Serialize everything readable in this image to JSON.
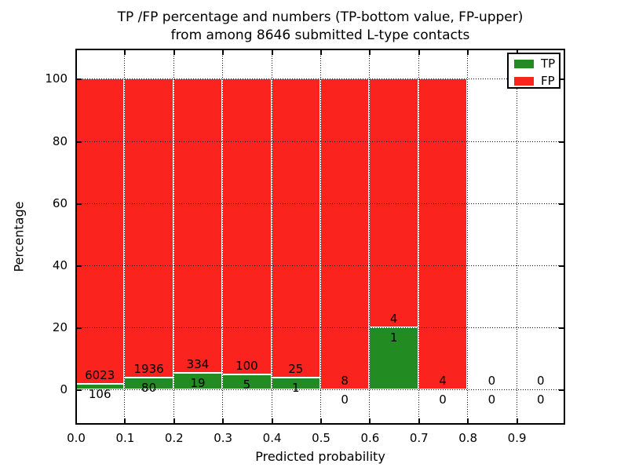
{
  "title": {
    "line1": "TP /FP percentage and numbers (TP-bottom value, FP-upper)",
    "line2": "from among 8646 submitted L-type contacts"
  },
  "legend": {
    "position": "upper right",
    "entries": [
      {
        "label": "TP",
        "color": "#228b22"
      },
      {
        "label": "FP",
        "color": "#fa231e"
      }
    ]
  },
  "chart_data": {
    "type": "bar",
    "stacked": true,
    "normalized_to_percent": true,
    "title": "TP /FP percentage and numbers (TP-bottom value, FP-upper) from among 8646 submitted L-type contacts",
    "xlabel": "Predicted probability",
    "ylabel": "Percentage",
    "xlim": [
      0.0,
      1.0
    ],
    "ylim": [
      -11.3,
      109.7
    ],
    "grid": true,
    "bin_width": 0.1,
    "x_tick_values": [
      0.0,
      0.1,
      0.2,
      0.3,
      0.4,
      0.5,
      0.6,
      0.7,
      0.8,
      0.9
    ],
    "x_tick_labels": [
      "0.0",
      "0.1",
      "0.2",
      "0.3",
      "0.4",
      "0.5",
      "0.6",
      "0.7",
      "0.8",
      "0.9"
    ],
    "y_tick_values": [
      0,
      20,
      40,
      60,
      80,
      100
    ],
    "y_tick_labels": [
      "0",
      "20",
      "40",
      "60",
      "80",
      "100"
    ],
    "categories": [
      "0.0-0.1",
      "0.1-0.2",
      "0.2-0.3",
      "0.3-0.4",
      "0.4-0.5",
      "0.5-0.6",
      "0.6-0.7",
      "0.7-0.8",
      "0.8-0.9",
      "0.9-1.0"
    ],
    "series": [
      {
        "name": "TP",
        "color": "#228b22",
        "counts": [
          106,
          80,
          19,
          5,
          1,
          0,
          1,
          0,
          0,
          0
        ]
      },
      {
        "name": "FP",
        "color": "#fa231e",
        "counts": [
          6023,
          1936,
          334,
          100,
          25,
          8,
          4,
          4,
          0,
          0
        ]
      }
    ],
    "tp_percent_per_bin": [
      1.73,
      3.97,
      5.38,
      4.76,
      3.85,
      0,
      20,
      0,
      0,
      0
    ],
    "total_contacts": 8646
  }
}
